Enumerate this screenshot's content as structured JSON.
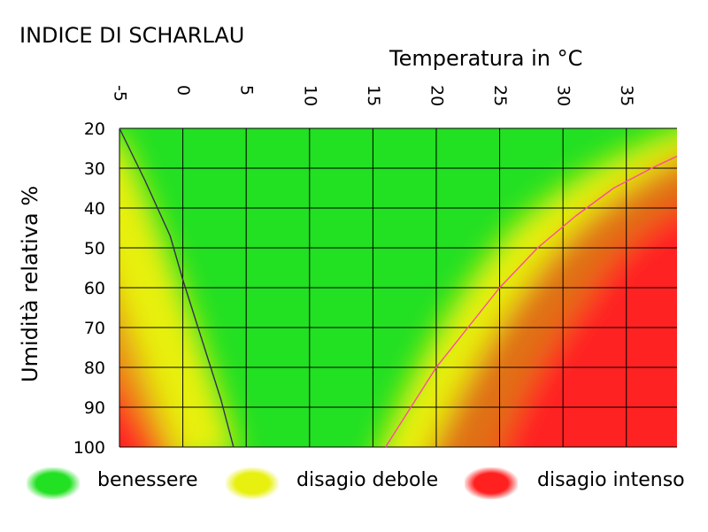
{
  "chart_data": {
    "type": "heatmap",
    "title": "INDICE DI SCHARLAU",
    "xlabel": "Temperatura in °C",
    "ylabel": "Umidità relativa %",
    "x_ticks": [
      -5,
      0,
      5,
      10,
      15,
      20,
      25,
      30,
      35
    ],
    "y_ticks": [
      20,
      30,
      40,
      50,
      60,
      70,
      80,
      90,
      100
    ],
    "xlim": [
      -5,
      39
    ],
    "ylim": [
      20,
      100
    ],
    "grid": true,
    "legend_position": "bottom",
    "zones": [
      {
        "label": "benessere",
        "color": "#22e022"
      },
      {
        "label": "disagio debole",
        "color": "#e8f010"
      },
      {
        "label": "disagio intenso",
        "color": "#ff2020"
      }
    ],
    "series": [
      {
        "color": "#303050",
        "points": [
          [
            -5,
            20
          ],
          [
            -3,
            33
          ],
          [
            -1,
            47
          ],
          [
            0,
            58
          ],
          [
            1,
            68
          ],
          [
            2,
            78
          ],
          [
            3,
            88
          ],
          [
            4,
            100
          ]
        ]
      },
      {
        "color": "#ff4aa0",
        "points": [
          [
            16,
            100
          ],
          [
            18,
            90
          ],
          [
            20,
            80
          ],
          [
            22.5,
            70
          ],
          [
            25,
            60
          ],
          [
            28,
            50
          ],
          [
            31,
            42
          ],
          [
            34,
            35
          ],
          [
            37,
            30
          ],
          [
            39,
            27
          ]
        ]
      }
    ]
  }
}
